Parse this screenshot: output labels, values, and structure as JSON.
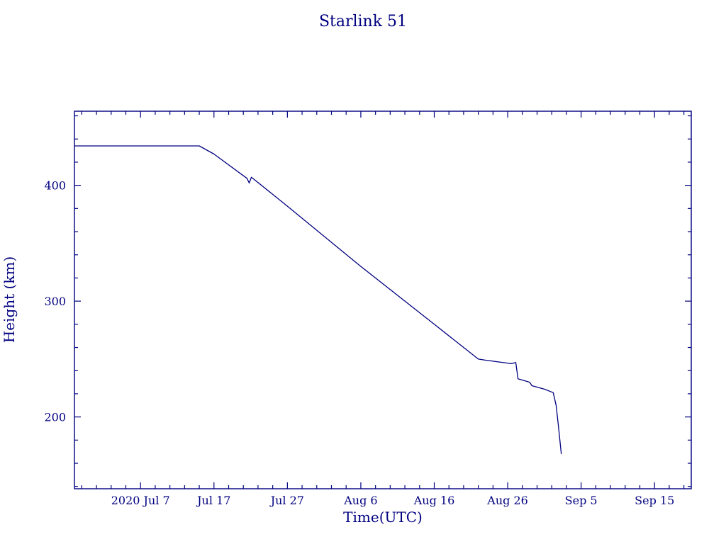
{
  "title": "Starlink 51",
  "chart_data": {
    "type": "line",
    "title": "Starlink 51",
    "xlabel": "Time(UTC)",
    "ylabel": "Height (km)",
    "line_color": "#000080",
    "axis_color": "#000080",
    "background": "#ffffff",
    "x_unit": "days since 2020-06-28",
    "x_domain_days": [
      0,
      84
    ],
    "x_ticks": [
      {
        "day": 9,
        "label": "2020 Jul 7"
      },
      {
        "day": 19,
        "label": "Jul 17"
      },
      {
        "day": 29,
        "label": "Jul 27"
      },
      {
        "day": 39,
        "label": "Aug 6"
      },
      {
        "day": 49,
        "label": "Aug 16"
      },
      {
        "day": 59,
        "label": "Aug 26"
      },
      {
        "day": 69,
        "label": "Sep 5"
      },
      {
        "day": 79,
        "label": "Sep 15"
      }
    ],
    "x_minor_step_days": 2,
    "y_domain": [
      138,
      464
    ],
    "y_ticks": [
      200,
      300,
      400
    ],
    "y_minor_step": 20,
    "grid": false,
    "legend": "none",
    "points": [
      [
        0,
        434
      ],
      [
        17,
        434
      ],
      [
        19,
        427
      ],
      [
        23.5,
        406
      ],
      [
        23.8,
        402
      ],
      [
        24.1,
        407
      ],
      [
        29,
        382
      ],
      [
        39,
        330
      ],
      [
        49,
        280
      ],
      [
        55,
        250
      ],
      [
        56,
        249
      ],
      [
        59.5,
        246
      ],
      [
        60.1,
        247
      ],
      [
        60.4,
        233
      ],
      [
        62,
        230
      ],
      [
        62.3,
        227
      ],
      [
        64,
        224
      ],
      [
        65.2,
        221
      ],
      [
        65.6,
        210
      ],
      [
        65.9,
        193
      ],
      [
        66.3,
        168
      ]
    ]
  }
}
